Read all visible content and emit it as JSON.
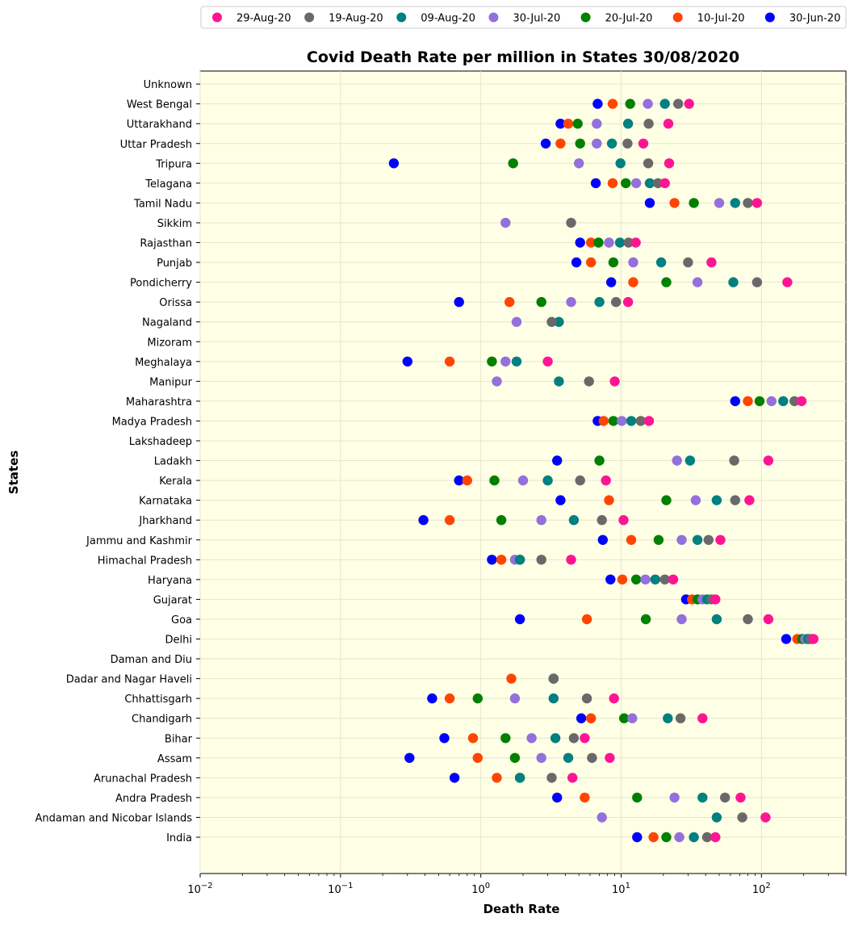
{
  "chart_data": {
    "type": "scatter",
    "title": "Covid Death Rate per million in States 30/08/2020",
    "xlabel": "Death Rate",
    "ylabel": "States",
    "x_scale": "log",
    "xlim": [
      0.01,
      400
    ],
    "x_ticks": [
      {
        "value": 0.01,
        "base": "10",
        "exp": "−2"
      },
      {
        "value": 0.1,
        "base": "10",
        "exp": "−1"
      },
      {
        "value": 1,
        "base": "10",
        "exp": "0"
      },
      {
        "value": 10,
        "base": "10",
        "exp": "1"
      },
      {
        "value": 100,
        "base": "10",
        "exp": "2"
      }
    ],
    "grid": true,
    "legend_position": "top",
    "background": "#ffffe6",
    "categories": [
      "India",
      "Andaman and Nicobar Islands",
      "Andra Pradesh",
      "Arunachal Pradesh",
      "Assam",
      "Bihar",
      "Chandigarh",
      "Chhattisgarh",
      "Dadar and Nagar Haveli",
      "Daman and Diu",
      "Delhi",
      "Goa",
      "Gujarat",
      "Haryana",
      "Himachal Pradesh",
      "Jammu and Kashmir",
      "Jharkhand",
      "Karnataka",
      "Kerala",
      "Ladakh",
      "Lakshadeep",
      "Madya Pradesh",
      "Maharashtra",
      "Manipur",
      "Meghalaya",
      "Mizoram",
      "Nagaland",
      "Orissa",
      "Pondicherry",
      "Punjab",
      "Rajasthan",
      "Sikkim",
      "Tamil Nadu",
      "Telagana",
      "Tripura",
      "Uttar Pradesh",
      "Uttarakhand",
      "West Bengal",
      "Unknown"
    ],
    "series": [
      {
        "name": "30-Jun-20",
        "color": "#0000ff",
        "values": [
          13,
          null,
          3.5,
          0.65,
          0.31,
          0.55,
          5.2,
          0.45,
          null,
          null,
          150,
          1.9,
          29,
          8.4,
          1.2,
          7.4,
          0.39,
          3.7,
          0.7,
          3.5,
          null,
          6.8,
          65,
          null,
          0.3,
          null,
          null,
          0.7,
          8.5,
          4.8,
          5.1,
          null,
          16,
          6.6,
          0.24,
          2.9,
          3.7,
          6.8,
          null
        ]
      },
      {
        "name": "10-Jul-20",
        "color": "#ff4500",
        "values": [
          17,
          null,
          5.5,
          1.3,
          0.95,
          0.88,
          6.1,
          0.6,
          1.65,
          null,
          180,
          5.7,
          32,
          10.2,
          1.4,
          11.8,
          0.6,
          8.2,
          0.8,
          null,
          null,
          7.5,
          80,
          null,
          0.6,
          null,
          null,
          1.6,
          12.2,
          6.1,
          6.1,
          null,
          24,
          8.7,
          null,
          3.7,
          4.2,
          8.7,
          null
        ]
      },
      {
        "name": "20-Jul-20",
        "color": "#008000",
        "values": [
          21,
          null,
          13,
          1.9,
          1.75,
          1.5,
          10.5,
          0.95,
          3.3,
          null,
          195,
          15,
          35,
          12.8,
          1.9,
          18.5,
          1.4,
          21,
          1.25,
          7,
          null,
          8.8,
          97,
          null,
          1.2,
          null,
          null,
          2.7,
          21,
          8.8,
          6.9,
          null,
          33,
          10.8,
          1.7,
          5.1,
          4.9,
          11.6,
          null
        ]
      },
      {
        "name": "30-Jul-20",
        "color": "#9370db",
        "values": [
          26,
          7.3,
          24,
          null,
          2.7,
          2.3,
          12,
          1.75,
          null,
          null,
          205,
          27,
          38,
          14.9,
          1.75,
          27,
          2.7,
          34,
          2,
          25,
          null,
          10.1,
          118,
          1.3,
          1.5,
          null,
          1.8,
          4.4,
          35,
          12.2,
          8.2,
          1.5,
          50,
          12.8,
          5,
          6.7,
          6.7,
          15.5,
          null
        ]
      },
      {
        "name": "09-Aug-20",
        "color": "#008080",
        "values": [
          33,
          48,
          38,
          1.9,
          4.2,
          3.4,
          21.5,
          3.3,
          3.3,
          null,
          215,
          48,
          41,
          17.5,
          1.9,
          35,
          4.6,
          48,
          3,
          31,
          null,
          11.8,
          143,
          3.6,
          1.8,
          null,
          3.6,
          7,
          63,
          19.3,
          9.8,
          null,
          65,
          16,
          9.9,
          8.6,
          11.2,
          20.5,
          null
        ]
      },
      {
        "name": "19-Aug-20",
        "color": "#696969",
        "values": [
          41,
          73,
          55,
          3.2,
          6.2,
          4.6,
          26.5,
          5.7,
          3.3,
          null,
          225,
          80,
          44,
          20.5,
          2.7,
          42,
          7.3,
          65,
          5.1,
          64,
          null,
          13.8,
          172,
          5.9,
          null,
          null,
          3.2,
          9.2,
          93,
          30,
          11.3,
          4.4,
          80,
          18.3,
          15.6,
          11.1,
          15.7,
          25.5,
          null
        ]
      },
      {
        "name": "29-Aug-20",
        "color": "#ff1493",
        "values": [
          47,
          107,
          71,
          4.5,
          8.3,
          5.5,
          38,
          8.9,
          null,
          null,
          235,
          112,
          47,
          23.5,
          4.4,
          51,
          10.4,
          82,
          7.8,
          112,
          null,
          15.8,
          193,
          9,
          3,
          null,
          null,
          11.2,
          153,
          44,
          12.7,
          null,
          93,
          20.5,
          22,
          14.4,
          21.7,
          30.5,
          null
        ]
      }
    ]
  }
}
